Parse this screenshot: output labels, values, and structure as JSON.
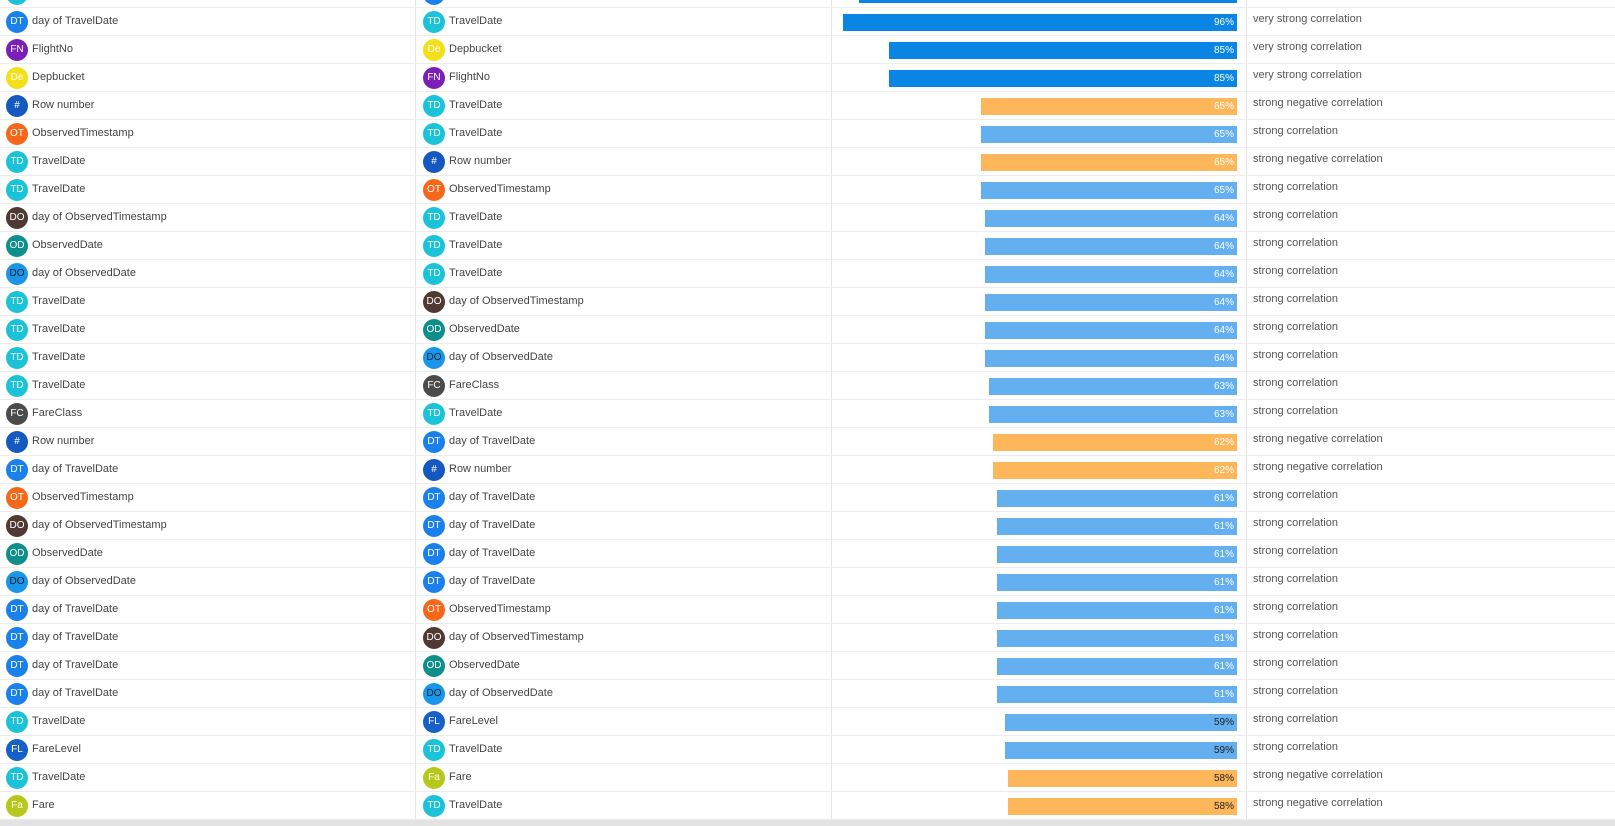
{
  "colors": {
    "very_strong": "#0b85e3",
    "strong": "#64aff0",
    "negative": "#fdb659",
    "badge": {
      "DT": "#1a80ec",
      "TD": "#1bc3d9",
      "FN": "#7a1fb8",
      "De": "#f3df1a",
      "#": "#1558c0",
      "OT": "#f6671a",
      "DO": "#4e3a33",
      "OD": "#0e8f8b",
      "DOb": "#1a95e8",
      "FC": "#4b4b4b",
      "FL": "#1760c8",
      "Fa": "#b6c91a"
    }
  },
  "rows": [
    {
      "a": {
        "b": "DT",
        "bk": "DT",
        "n": "day of TravelDate"
      },
      "c": {
        "b": "TD",
        "bk": "TD",
        "n": "TravelDate"
      },
      "p": 0.96,
      "t": "very_strong",
      "pl": "96%",
      "d": "very strong correlation"
    },
    {
      "a": {
        "b": "FN",
        "bk": "FN",
        "n": "FlightNo"
      },
      "c": {
        "b": "De",
        "bk": "De",
        "n": "Depbucket"
      },
      "p": 0.85,
      "t": "very_strong",
      "pl": "85%",
      "d": "very strong correlation"
    },
    {
      "a": {
        "b": "De",
        "bk": "De",
        "n": "Depbucket"
      },
      "c": {
        "b": "FN",
        "bk": "FN",
        "n": "FlightNo"
      },
      "p": 0.85,
      "t": "very_strong",
      "pl": "85%",
      "d": "very strong correlation"
    },
    {
      "a": {
        "b": "#",
        "bk": "#",
        "n": "Row number"
      },
      "c": {
        "b": "TD",
        "bk": "TD",
        "n": "TravelDate"
      },
      "p": 0.65,
      "t": "negative",
      "pl": "65%",
      "d": "strong negative correlation"
    },
    {
      "a": {
        "b": "OT",
        "bk": "OT",
        "n": "ObservedTimestamp"
      },
      "c": {
        "b": "TD",
        "bk": "TD",
        "n": "TravelDate"
      },
      "p": 0.65,
      "t": "strong",
      "pl": "65%",
      "d": "strong correlation"
    },
    {
      "a": {
        "b": "TD",
        "bk": "TD",
        "n": "TravelDate"
      },
      "c": {
        "b": "#",
        "bk": "#",
        "n": "Row number"
      },
      "p": 0.65,
      "t": "negative",
      "pl": "65%",
      "d": "strong negative correlation"
    },
    {
      "a": {
        "b": "TD",
        "bk": "TD",
        "n": "TravelDate"
      },
      "c": {
        "b": "OT",
        "bk": "OT",
        "n": "ObservedTimestamp"
      },
      "p": 0.65,
      "t": "strong",
      "pl": "65%",
      "d": "strong correlation"
    },
    {
      "a": {
        "b": "DO",
        "bk": "DO",
        "n": "day of ObservedTimestamp"
      },
      "c": {
        "b": "TD",
        "bk": "TD",
        "n": "TravelDate"
      },
      "p": 0.64,
      "t": "strong",
      "pl": "64%",
      "d": "strong correlation"
    },
    {
      "a": {
        "b": "OD",
        "bk": "OD",
        "n": "ObservedDate"
      },
      "c": {
        "b": "TD",
        "bk": "TD",
        "n": "TravelDate"
      },
      "p": 0.64,
      "t": "strong",
      "pl": "64%",
      "d": "strong correlation"
    },
    {
      "a": {
        "b": "DO",
        "bk": "DOb",
        "n": "day of ObservedDate"
      },
      "c": {
        "b": "TD",
        "bk": "TD",
        "n": "TravelDate"
      },
      "p": 0.64,
      "t": "strong",
      "pl": "64%",
      "d": "strong correlation"
    },
    {
      "a": {
        "b": "TD",
        "bk": "TD",
        "n": "TravelDate"
      },
      "c": {
        "b": "DO",
        "bk": "DO",
        "n": "day of ObservedTimestamp"
      },
      "p": 0.64,
      "t": "strong",
      "pl": "64%",
      "d": "strong correlation"
    },
    {
      "a": {
        "b": "TD",
        "bk": "TD",
        "n": "TravelDate"
      },
      "c": {
        "b": "OD",
        "bk": "OD",
        "n": "ObservedDate"
      },
      "p": 0.64,
      "t": "strong",
      "pl": "64%",
      "d": "strong correlation"
    },
    {
      "a": {
        "b": "TD",
        "bk": "TD",
        "n": "TravelDate"
      },
      "c": {
        "b": "DO",
        "bk": "DOb",
        "n": "day of ObservedDate"
      },
      "p": 0.64,
      "t": "strong",
      "pl": "64%",
      "d": "strong correlation"
    },
    {
      "a": {
        "b": "TD",
        "bk": "TD",
        "n": "TravelDate"
      },
      "c": {
        "b": "FC",
        "bk": "FC",
        "n": "FareClass"
      },
      "p": 0.63,
      "t": "strong",
      "pl": "63%",
      "d": "strong correlation"
    },
    {
      "a": {
        "b": "FC",
        "bk": "FC",
        "n": "FareClass"
      },
      "c": {
        "b": "TD",
        "bk": "TD",
        "n": "TravelDate"
      },
      "p": 0.63,
      "t": "strong",
      "pl": "63%",
      "d": "strong correlation"
    },
    {
      "a": {
        "b": "#",
        "bk": "#",
        "n": "Row number"
      },
      "c": {
        "b": "DT",
        "bk": "DT",
        "n": "day of TravelDate"
      },
      "p": 0.62,
      "t": "negative",
      "pl": "62%",
      "d": "strong negative correlation"
    },
    {
      "a": {
        "b": "DT",
        "bk": "DT",
        "n": "day of TravelDate"
      },
      "c": {
        "b": "#",
        "bk": "#",
        "n": "Row number"
      },
      "p": 0.62,
      "t": "negative",
      "pl": "62%",
      "d": "strong negative correlation"
    },
    {
      "a": {
        "b": "OT",
        "bk": "OT",
        "n": "ObservedTimestamp"
      },
      "c": {
        "b": "DT",
        "bk": "DT",
        "n": "day of TravelDate"
      },
      "p": 0.61,
      "t": "strong",
      "pl": "61%",
      "d": "strong correlation"
    },
    {
      "a": {
        "b": "DO",
        "bk": "DO",
        "n": "day of ObservedTimestamp"
      },
      "c": {
        "b": "DT",
        "bk": "DT",
        "n": "day of TravelDate"
      },
      "p": 0.61,
      "t": "strong",
      "pl": "61%",
      "d": "strong correlation"
    },
    {
      "a": {
        "b": "OD",
        "bk": "OD",
        "n": "ObservedDate"
      },
      "c": {
        "b": "DT",
        "bk": "DT",
        "n": "day of TravelDate"
      },
      "p": 0.61,
      "t": "strong",
      "pl": "61%",
      "d": "strong correlation"
    },
    {
      "a": {
        "b": "DO",
        "bk": "DOb",
        "n": "day of ObservedDate"
      },
      "c": {
        "b": "DT",
        "bk": "DT",
        "n": "day of TravelDate"
      },
      "p": 0.61,
      "t": "strong",
      "pl": "61%",
      "d": "strong correlation"
    },
    {
      "a": {
        "b": "DT",
        "bk": "DT",
        "n": "day of TravelDate"
      },
      "c": {
        "b": "OT",
        "bk": "OT",
        "n": "ObservedTimestamp"
      },
      "p": 0.61,
      "t": "strong",
      "pl": "61%",
      "d": "strong correlation"
    },
    {
      "a": {
        "b": "DT",
        "bk": "DT",
        "n": "day of TravelDate"
      },
      "c": {
        "b": "DO",
        "bk": "DO",
        "n": "day of ObservedTimestamp"
      },
      "p": 0.61,
      "t": "strong",
      "pl": "61%",
      "d": "strong correlation"
    },
    {
      "a": {
        "b": "DT",
        "bk": "DT",
        "n": "day of TravelDate"
      },
      "c": {
        "b": "OD",
        "bk": "OD",
        "n": "ObservedDate"
      },
      "p": 0.61,
      "t": "strong",
      "pl": "61%",
      "d": "strong correlation"
    },
    {
      "a": {
        "b": "DT",
        "bk": "DT",
        "n": "day of TravelDate"
      },
      "c": {
        "b": "DO",
        "bk": "DOb",
        "n": "day of ObservedDate"
      },
      "p": 0.61,
      "t": "strong",
      "pl": "61%",
      "d": "strong correlation"
    },
    {
      "a": {
        "b": "TD",
        "bk": "TD",
        "n": "TravelDate"
      },
      "c": {
        "b": "FL",
        "bk": "FL",
        "n": "FareLevel"
      },
      "p": 0.59,
      "t": "strong",
      "pl": "59%",
      "d": "strong correlation"
    },
    {
      "a": {
        "b": "FL",
        "bk": "FL",
        "n": "FareLevel"
      },
      "c": {
        "b": "TD",
        "bk": "TD",
        "n": "TravelDate"
      },
      "p": 0.59,
      "t": "strong",
      "pl": "59%",
      "d": "strong correlation"
    },
    {
      "a": {
        "b": "TD",
        "bk": "TD",
        "n": "TravelDate"
      },
      "c": {
        "b": "Fa",
        "bk": "Fa",
        "n": "Fare"
      },
      "p": 0.58,
      "t": "negative",
      "pl": "58%",
      "d": "strong negative correlation"
    },
    {
      "a": {
        "b": "Fa",
        "bk": "Fa",
        "n": "Fare"
      },
      "c": {
        "b": "TD",
        "bk": "TD",
        "n": "TravelDate"
      },
      "p": 0.58,
      "t": "negative",
      "pl": "58%",
      "d": "strong negative correlation"
    }
  ]
}
